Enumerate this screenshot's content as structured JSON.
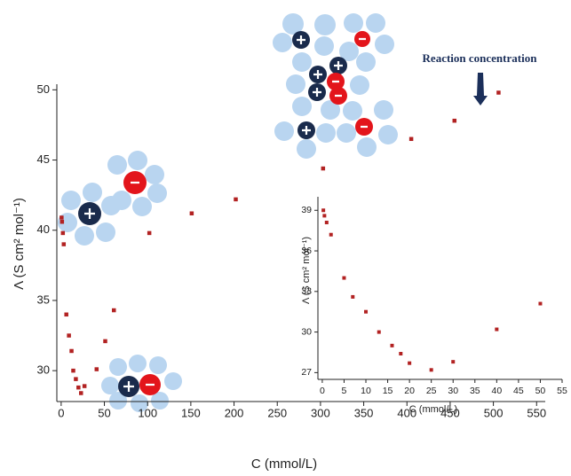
{
  "chart_data": [
    {
      "type": "scatter",
      "color": "#b22222",
      "x": [
        0.5,
        1,
        2,
        3,
        6,
        9,
        12,
        14,
        17,
        20,
        23,
        27,
        41,
        51,
        61,
        102,
        151,
        202,
        303,
        405,
        455,
        506
      ],
      "values": [
        40.9,
        40.6,
        39.8,
        39.0,
        34.0,
        32.5,
        31.4,
        30.0,
        29.4,
        28.8,
        28.4,
        28.9,
        30.1,
        32.1,
        34.3,
        39.8,
        41.2,
        42.2,
        44.4,
        46.5,
        47.8,
        49.8
      ],
      "xlabel": "C (mmol/L)",
      "ylabel": "Λ (S cm² mol⁻¹)",
      "xlim": [
        -5,
        560
      ],
      "xticks": [
        0,
        50,
        100,
        150,
        200,
        250,
        300,
        350,
        400,
        450,
        500,
        550
      ],
      "ylim": [
        27.8,
        50.4
      ],
      "yticks": [
        30,
        35,
        40,
        45,
        50
      ],
      "annotation": "Reaction concentration"
    },
    {
      "type": "scatter",
      "color": "#b22222",
      "x": [
        0.25,
        0.5,
        1,
        2,
        5,
        7,
        10,
        13,
        16,
        18,
        20,
        25,
        30,
        40,
        50
      ],
      "values": [
        39.0,
        38.6,
        38.1,
        37.2,
        34.0,
        32.6,
        31.5,
        30.0,
        29.0,
        28.4,
        27.7,
        27.2,
        27.8,
        30.2,
        32.1
      ],
      "xlabel": "C (mmol/L)",
      "ylabel": "Λ (S cm² mol⁻¹)",
      "xlim": [
        -1,
        55
      ],
      "xticks": [
        0,
        5,
        10,
        15,
        20,
        25,
        30,
        35,
        40,
        45,
        50,
        55
      ],
      "ylim": [
        26.5,
        40
      ],
      "yticks": [
        27,
        30,
        33,
        36,
        39
      ]
    }
  ]
}
